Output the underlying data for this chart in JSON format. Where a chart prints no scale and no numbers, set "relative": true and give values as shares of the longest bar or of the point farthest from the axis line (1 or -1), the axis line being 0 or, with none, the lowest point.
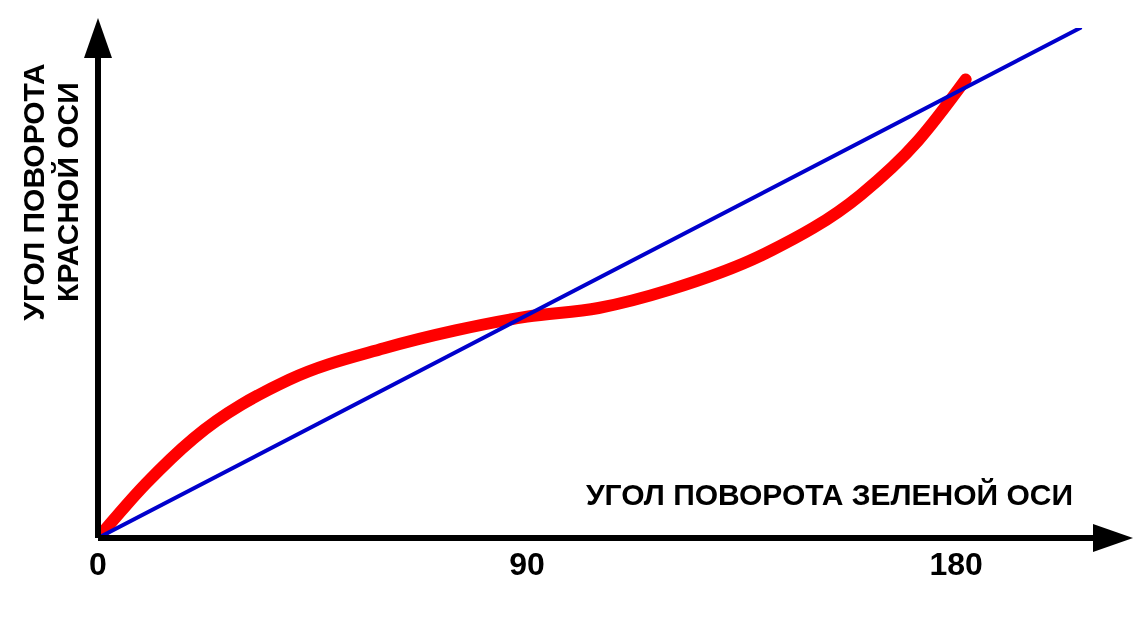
{
  "chart_data": {
    "type": "line",
    "xlabel": "УГОЛ ПОВОРОТА ЗЕЛЕНОЙ ОСИ",
    "ylabel": "УГОЛ ПОВОРОТА КРАСНОЙ ОСИ",
    "relative": true,
    "xlim": [
      0,
      215
    ],
    "xticks": [
      0,
      90,
      180
    ],
    "grid": false,
    "legend": false,
    "marker": "none",
    "line_style": "solid",
    "series": [
      {
        "color": "#ff0000",
        "x": [
          0,
          10,
          20,
          40,
          60,
          75,
          90,
          105,
          120,
          140,
          160,
          172,
          182
        ],
        "values": [
          0,
          0.106,
          0.195,
          0.31,
          0.372,
          0.407,
          0.434,
          0.451,
          0.487,
          0.558,
          0.673,
          0.779,
          0.899
        ]
      },
      {
        "color": "#0000cc",
        "x": [
          0,
          206
        ],
        "values": [
          0,
          1
        ]
      }
    ]
  }
}
